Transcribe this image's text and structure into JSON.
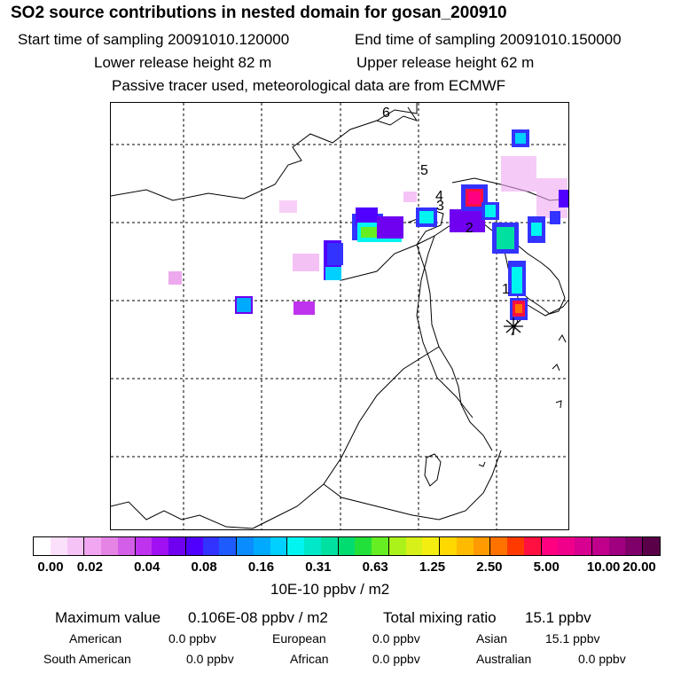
{
  "header": {
    "title": "SO2 source contributions in nested domain for gosan_200910",
    "start": "Start time of sampling 20091010.120000",
    "end": "End time of sampling 20091010.150000",
    "lower": "Lower release height   82 m",
    "upper": "Upper release height   62 m",
    "note": "Passive tracer used, meteorological data are from ECMWF"
  },
  "map": {
    "trajectory_labels": [
      "1",
      "2",
      "3",
      "4",
      "5",
      "6"
    ],
    "receptor_icon": "asterisk-receptor-icon"
  },
  "colorbar": {
    "colors": [
      "#ffffff",
      "#fbe0fb",
      "#f6c3f6",
      "#f0a6f0",
      "#e684e6",
      "#d35fe8",
      "#bf33ee",
      "#a010f2",
      "#6f00f0",
      "#5000ff",
      "#3333ff",
      "#1e5bff",
      "#0a8cff",
      "#00aaff",
      "#00d0ff",
      "#00f5f0",
      "#00e8c8",
      "#00e0a0",
      "#00dc70",
      "#22e03a",
      "#66ee22",
      "#aaf21a",
      "#d7f01a",
      "#f4ee10",
      "#ffd800",
      "#ffbb00",
      "#ff9a00",
      "#ff7200",
      "#ff3a00",
      "#ff1040",
      "#ff0080",
      "#f0008a",
      "#d80090",
      "#c0008c",
      "#a00080",
      "#7f0068",
      "#5a0048"
    ],
    "ticks": [
      "0.00",
      "0.02",
      "0.04",
      "0.08",
      "0.16",
      "0.31",
      "0.63",
      "1.25",
      "2.50",
      "5.00",
      "10.00",
      "20.00"
    ],
    "unit": "10E-10 ppbv / m2"
  },
  "summary": {
    "max_label": "Maximum value",
    "max_value": "0.106E-08 ppbv / m2",
    "total_label": "Total mixing ratio",
    "total_value": "15.1 ppbv"
  },
  "regions": [
    {
      "name": "American",
      "value": "0.0 ppbv"
    },
    {
      "name": "European",
      "value": "0.0 ppbv"
    },
    {
      "name": "Asian",
      "value": "15.1 ppbv"
    },
    {
      "name": "South American",
      "value": "0.0 ppbv"
    },
    {
      "name": "African",
      "value": "0.0 ppbv"
    },
    {
      "name": "Australian",
      "value": "0.0 ppbv"
    }
  ]
}
